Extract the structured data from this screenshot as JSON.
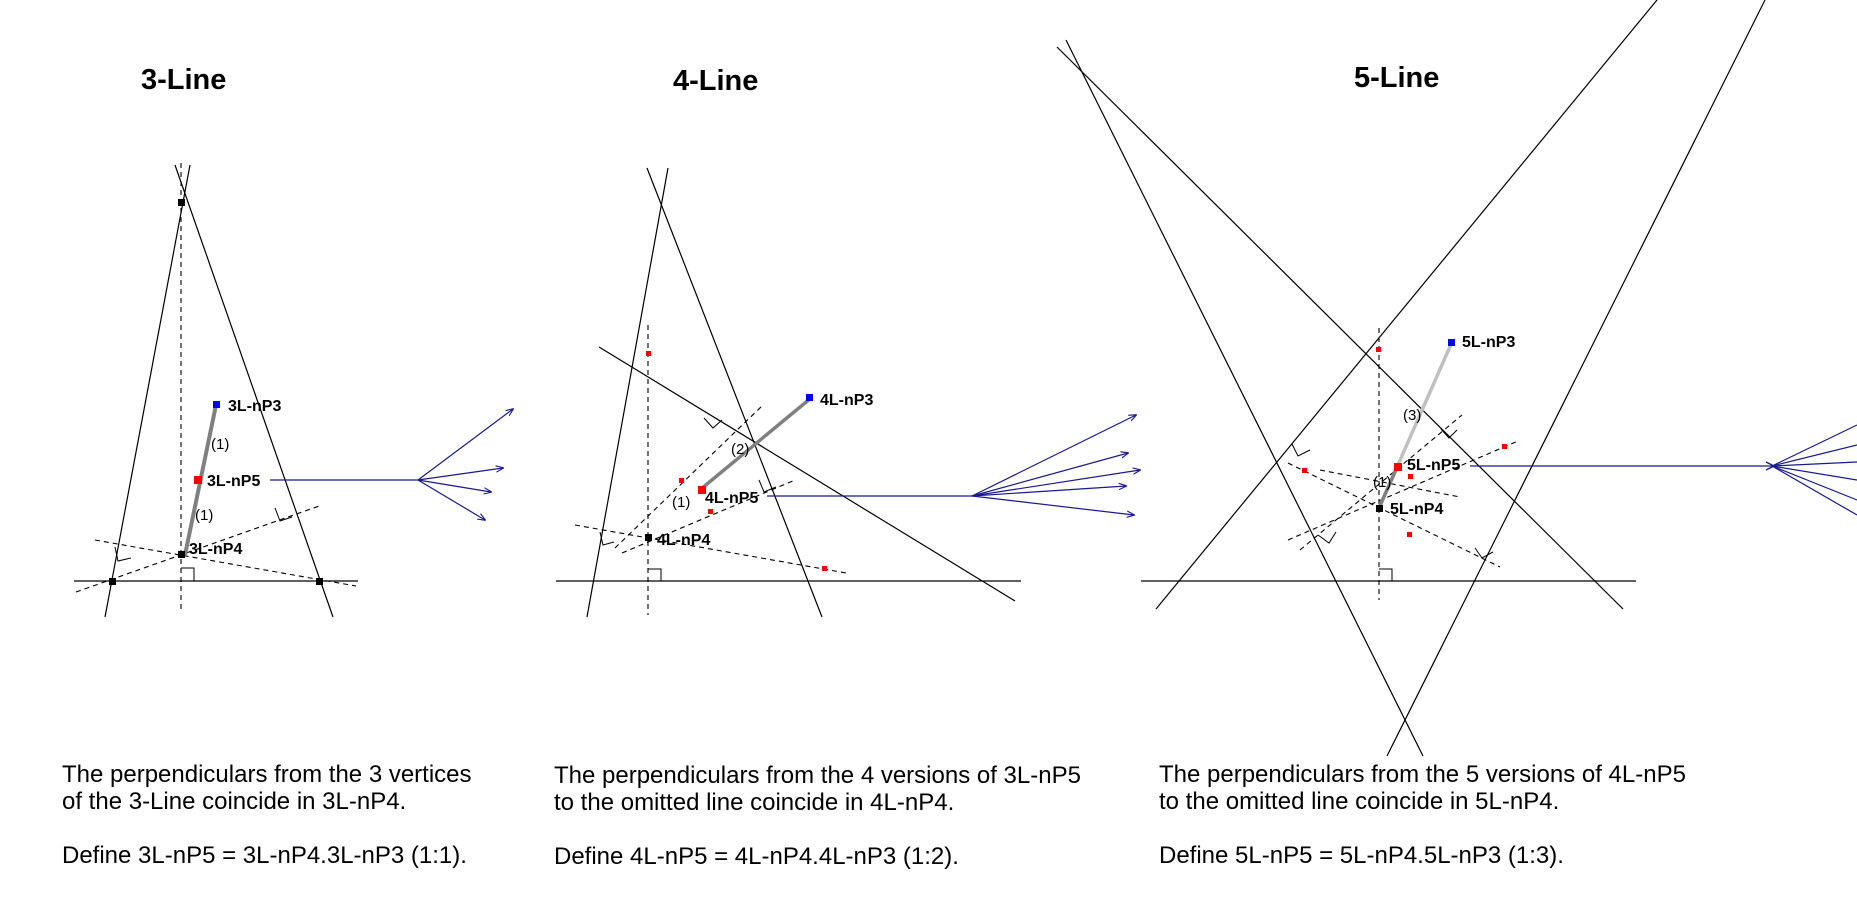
{
  "panels": [
    {
      "title": "3-Line",
      "points": {
        "p3": "3L-nP3",
        "p5": "3L-nP5",
        "p4": "3L-nP4"
      },
      "ratios": [
        "(1)",
        "(1)"
      ],
      "caption": {
        "line1": "The perpendiculars from the 3 vertices",
        "line2": "of the 3-Line coincide in 3L-nP4.",
        "line3": "Define 3L-nP5 = 3L-nP4.3L-nP3 (1:1)."
      }
    },
    {
      "title": "4-Line",
      "points": {
        "p3": "4L-nP3",
        "p5": "4L-nP5",
        "p4": "4L-nP4"
      },
      "ratios": [
        "(1)",
        "(2)"
      ],
      "caption": {
        "line1": "The perpendiculars from the 4 versions of 3L-nP5",
        "line2": "to the omitted line coincide in 4L-nP4.",
        "line3": "Define 4L-nP5 = 4L-nP4.4L-nP3 (1:2)."
      }
    },
    {
      "title": "5-Line",
      "points": {
        "p3": "5L-nP3",
        "p5": "5L-nP5",
        "p4": "5L-nP4"
      },
      "ratios": [
        "(1)",
        "(3)"
      ],
      "caption": {
        "line1": "The perpendiculars from the 5 versions of 4L-nP5",
        "line2": "to the omitted line coincide in 5L-nP4.",
        "line3": "Define 5L-nP5 = 5L-nP4.5L-nP3 (1:3)."
      }
    }
  ],
  "colors": {
    "lines": "#000000",
    "arrows": "#1a1a8c",
    "nP3": "#0000ff",
    "nP5": "#ff0000",
    "nP4": "#000000",
    "segment_dark": "#808080",
    "segment_light": "#c0c0c0"
  }
}
